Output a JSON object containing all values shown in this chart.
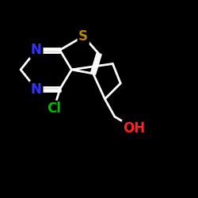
{
  "background_color": "#000000",
  "N_color": "#3333ff",
  "S_color": "#b8860b",
  "Cl_color": "#00bb00",
  "OH_color": "#ff2222",
  "bond_color": "#ffffff",
  "bond_lw": 2.0,
  "label_fontsize": 11,
  "xlim": [
    0,
    10
  ],
  "ylim": [
    0,
    10
  ],
  "figsize": [
    2.5,
    2.5
  ],
  "dpi": 100
}
